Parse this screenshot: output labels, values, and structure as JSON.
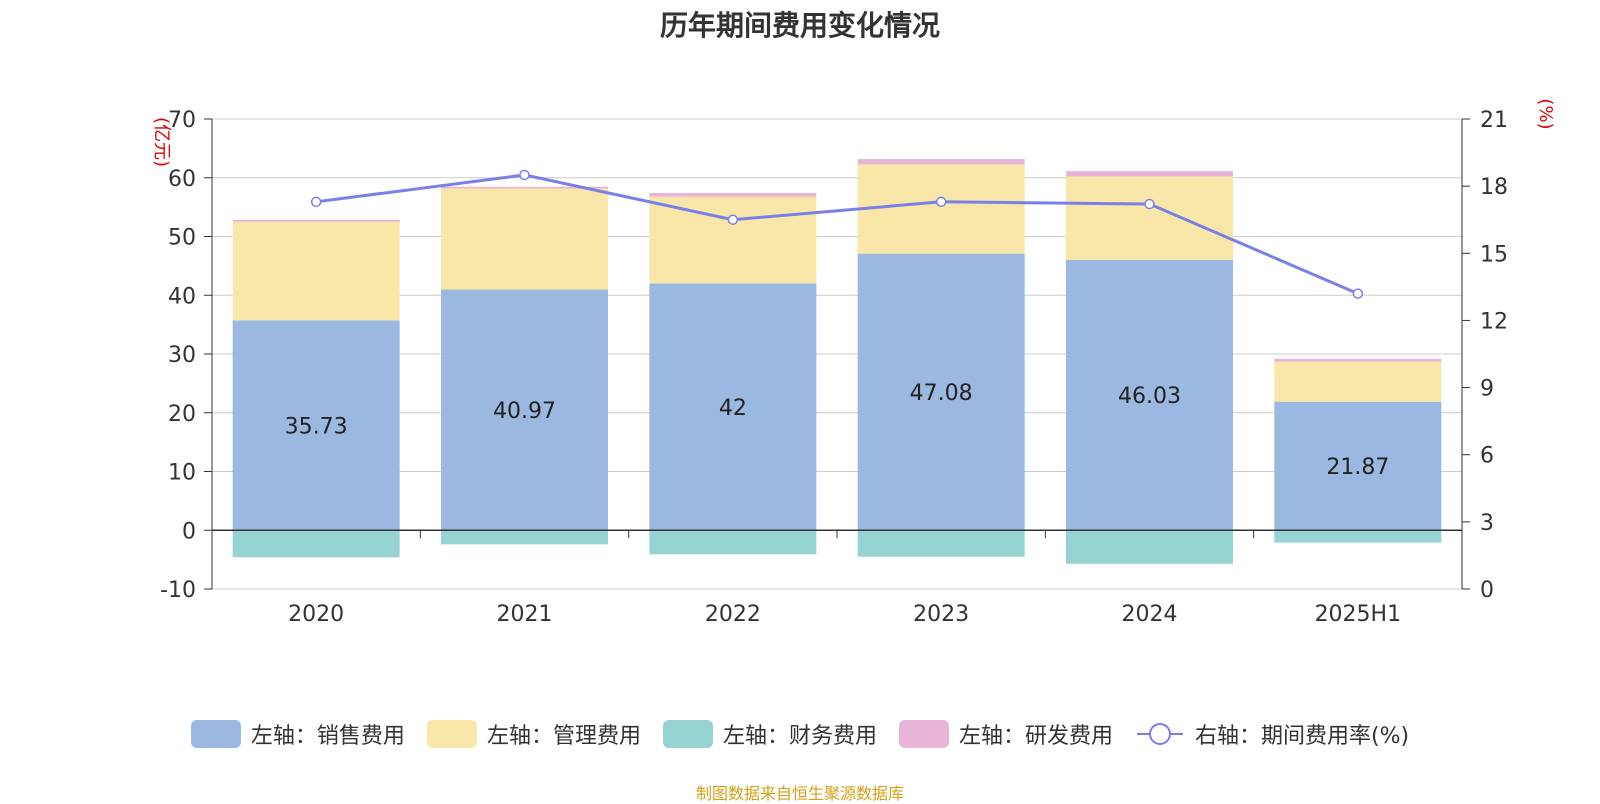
{
  "title": "历年期间费用变化情况",
  "source": "制图数据来自恒生聚源数据库",
  "colors": {
    "sales": "#9bb8e0",
    "admin": "#f8e7a8",
    "finance": "#96d3d3",
    "rd": "#e8b4d8",
    "rate": "#7b7fe8",
    "axis_unit": "#e00000",
    "grid": "#cccccc",
    "text": "#333333"
  },
  "legend": [
    {
      "label": "左轴：销售费用",
      "key": "sales",
      "type": "bar"
    },
    {
      "label": "左轴：管理费用",
      "key": "admin",
      "type": "bar"
    },
    {
      "label": "左轴：财务费用",
      "key": "finance",
      "type": "bar"
    },
    {
      "label": "左轴：研发费用",
      "key": "rd",
      "type": "bar"
    },
    {
      "label": "右轴：期间费用率(%)",
      "key": "rate",
      "type": "line"
    }
  ],
  "chart_data": {
    "type": "bar",
    "stacked": true,
    "categories": [
      "2020",
      "2021",
      "2022",
      "2023",
      "2024",
      "2025H1"
    ],
    "series": [
      {
        "name": "左轴：销售费用",
        "axis": "left",
        "values": [
          35.73,
          40.97,
          42,
          47.08,
          46.03,
          21.87
        ],
        "data_labels": [
          "35.73",
          "40.97",
          "42",
          "47.08",
          "46.03",
          "21.87"
        ]
      },
      {
        "name": "左轴：管理费用",
        "axis": "left",
        "values": [
          16.8,
          17.2,
          14.8,
          15.2,
          14.2,
          6.8
        ]
      },
      {
        "name": "左轴：财务费用",
        "axis": "left",
        "values": [
          -4.6,
          -2.4,
          -4.1,
          -4.5,
          -5.7,
          -2.1
        ]
      },
      {
        "name": "左轴：研发费用",
        "axis": "left",
        "values": [
          0.3,
          0.3,
          0.6,
          0.9,
          0.9,
          0.5
        ]
      },
      {
        "name": "右轴：期间费用率(%)",
        "axis": "right",
        "type": "line",
        "values": [
          17.3,
          18.5,
          16.5,
          17.3,
          17.2,
          13.2
        ]
      }
    ],
    "left_axis": {
      "unit": "(亿元)",
      "ylim": [
        -10,
        70
      ],
      "ticks": [
        -10,
        0,
        10,
        20,
        30,
        40,
        50,
        60,
        70
      ]
    },
    "right_axis": {
      "unit": "(%)",
      "ylim": [
        0,
        21
      ],
      "ticks": [
        0,
        3,
        6,
        9,
        12,
        15,
        18,
        21
      ]
    },
    "grid": true,
    "legend_position": "bottom"
  }
}
